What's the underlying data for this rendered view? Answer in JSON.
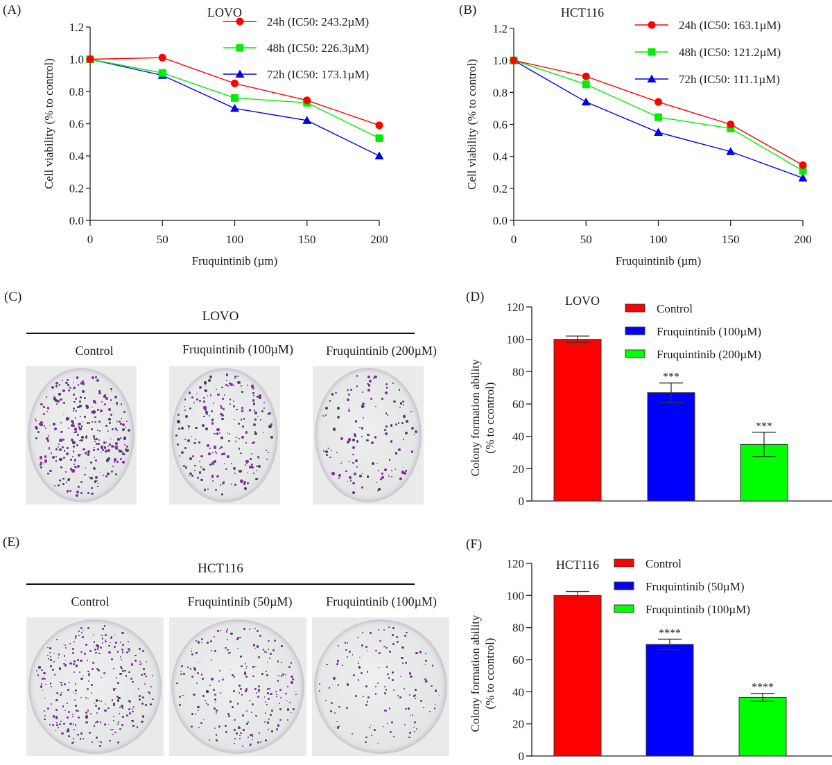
{
  "panels": {
    "A": {
      "label": "(A)"
    },
    "B": {
      "label": "(B)"
    },
    "C": {
      "label": "(C)"
    },
    "D": {
      "label": "(D)"
    },
    "E": {
      "label": "(E)"
    },
    "F": {
      "label": "(F)"
    }
  },
  "colors": {
    "h24": "#ff0000",
    "h48": "#00ee00",
    "h72": "#0000ee",
    "bar_control": "#ff0000",
    "bar_low": "#0000ff",
    "bar_high": "#00ff00",
    "colony": "#8a2aa8"
  },
  "plates": {
    "C": {
      "title": "LOVO",
      "captions": [
        "Control",
        "Fruquintinib (100µM)",
        "Fruquintinib (200µM)"
      ],
      "relative_colony_density": [
        1.0,
        0.67,
        0.35
      ]
    },
    "E": {
      "title": "HCT116",
      "captions": [
        "Control",
        "Fruquintinib (50µM)",
        "Fruquintinib (100µM)"
      ],
      "relative_colony_density": [
        1.0,
        0.7,
        0.37
      ]
    }
  },
  "chart_data": [
    {
      "id": "A",
      "type": "line",
      "title": "LOVO",
      "xlabel": "Fruquintinib (µm)",
      "ylabel": "Cell viability (% to control)",
      "x": [
        0,
        50,
        100,
        150,
        200
      ],
      "xlim": [
        0,
        200
      ],
      "ylim": [
        0,
        1.2
      ],
      "xticks": [
        "0",
        "50",
        "100",
        "150",
        "200"
      ],
      "yticks": [
        "0.0",
        "0.2",
        "0.4",
        "0.6",
        "0.8",
        "1.0",
        "1.2"
      ],
      "grid": false,
      "legend_position": "top-right",
      "series": [
        {
          "name": "24h (IC50: 243.2µM)",
          "marker": "circle",
          "color_key": "h24",
          "values": [
            1.0,
            1.01,
            0.85,
            0.745,
            0.59
          ]
        },
        {
          "name": "48h (IC50: 226.3µM)",
          "marker": "square",
          "color_key": "h48",
          "values": [
            1.0,
            0.915,
            0.76,
            0.73,
            0.51
          ]
        },
        {
          "name": "72h (IC50: 173.1µM)",
          "marker": "triangle",
          "color_key": "h72",
          "values": [
            1.0,
            0.9,
            0.695,
            0.62,
            0.4
          ]
        }
      ]
    },
    {
      "id": "B",
      "type": "line",
      "title": "HCT116",
      "xlabel": "Fruquintinib (µm)",
      "ylabel": "Cell viability (% to control)",
      "x": [
        0,
        50,
        100,
        150,
        200
      ],
      "xlim": [
        0,
        200
      ],
      "ylim": [
        0,
        1.2
      ],
      "xticks": [
        "0",
        "50",
        "100",
        "150",
        "200"
      ],
      "yticks": [
        "0.0",
        "0.2",
        "0.4",
        "0.6",
        "0.8",
        "1.0",
        "1.2"
      ],
      "grid": false,
      "legend_position": "top-right",
      "series": [
        {
          "name": "24h (IC50: 163.1µM)",
          "marker": "circle",
          "color_key": "h24",
          "values": [
            1.0,
            0.9,
            0.74,
            0.6,
            0.345
          ]
        },
        {
          "name": "48h (IC50: 121.2µM)",
          "marker": "square",
          "color_key": "h48",
          "values": [
            1.0,
            0.85,
            0.645,
            0.575,
            0.31
          ]
        },
        {
          "name": "72h (IC50: 111.1µM)",
          "marker": "triangle",
          "color_key": "h72",
          "values": [
            1.0,
            0.74,
            0.55,
            0.43,
            0.265
          ]
        }
      ]
    },
    {
      "id": "D",
      "type": "bar",
      "title": "LOVO",
      "xlabel": "",
      "ylabel": "Colony formation ability (% to ccontrol)",
      "ylabel_lines": [
        "Colony formation ability",
        "(% to ccontrol)"
      ],
      "ylim": [
        0,
        120
      ],
      "yticks": [
        "0",
        "20",
        "40",
        "60",
        "80",
        "100",
        "120"
      ],
      "grid": false,
      "legend_position": "top-right",
      "categories": [
        "Control",
        "Fruquintinib (100µM)",
        "Fruquintinib (200µM)"
      ],
      "color_keys": [
        "bar_control",
        "bar_low",
        "bar_high"
      ],
      "values": [
        100,
        67,
        35
      ],
      "error": [
        2,
        6,
        7.5
      ],
      "significance": [
        "",
        "***",
        "***"
      ]
    },
    {
      "id": "F",
      "type": "bar",
      "title": "HCT116",
      "xlabel": "",
      "ylabel": "Colony formation ability (% to ccontrol)",
      "ylabel_lines": [
        "Colony formation ability",
        "(% to ccontrol)"
      ],
      "ylim": [
        0,
        120
      ],
      "yticks": [
        "0",
        "20",
        "40",
        "60",
        "80",
        "100",
        "120"
      ],
      "grid": false,
      "legend_position": "top-right",
      "categories": [
        "Control",
        "Fruquintinib (50µM)",
        "Fruquintinib (100µM)"
      ],
      "color_keys": [
        "bar_control",
        "bar_low",
        "bar_high"
      ],
      "values": [
        100,
        69.5,
        36.5
      ],
      "error": [
        2.5,
        3.3,
        2.5
      ],
      "significance": [
        "",
        "****",
        "****"
      ]
    }
  ]
}
